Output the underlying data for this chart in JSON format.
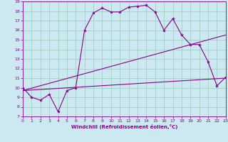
{
  "xlabel": "Windchill (Refroidissement éolien,°C)",
  "bg_color": "#cce8f0",
  "line_color": "#880088",
  "grid_color": "#99ccbb",
  "xlim": [
    0,
    23
  ],
  "ylim": [
    7,
    19
  ],
  "xticks": [
    0,
    1,
    2,
    3,
    4,
    5,
    6,
    7,
    8,
    9,
    10,
    11,
    12,
    13,
    14,
    15,
    16,
    17,
    18,
    19,
    20,
    21,
    22,
    23
  ],
  "yticks": [
    7,
    8,
    9,
    10,
    11,
    12,
    13,
    14,
    15,
    16,
    17,
    18,
    19
  ],
  "line1_x": [
    0,
    1,
    2,
    3,
    4,
    5,
    6,
    7,
    8,
    9,
    10,
    11,
    12,
    13,
    14,
    15,
    16,
    17,
    18,
    19,
    20,
    21,
    22,
    23
  ],
  "line1_y": [
    10.0,
    9.0,
    8.7,
    9.3,
    7.5,
    9.7,
    10.0,
    16.0,
    17.8,
    18.3,
    17.9,
    17.9,
    18.4,
    18.5,
    18.6,
    17.9,
    16.0,
    17.2,
    15.5,
    14.5,
    14.5,
    12.7,
    10.2,
    11.1
  ],
  "line2_x": [
    0,
    23
  ],
  "line2_y": [
    9.7,
    11.0
  ],
  "line3_x": [
    0,
    23
  ],
  "line3_y": [
    9.7,
    15.5
  ]
}
